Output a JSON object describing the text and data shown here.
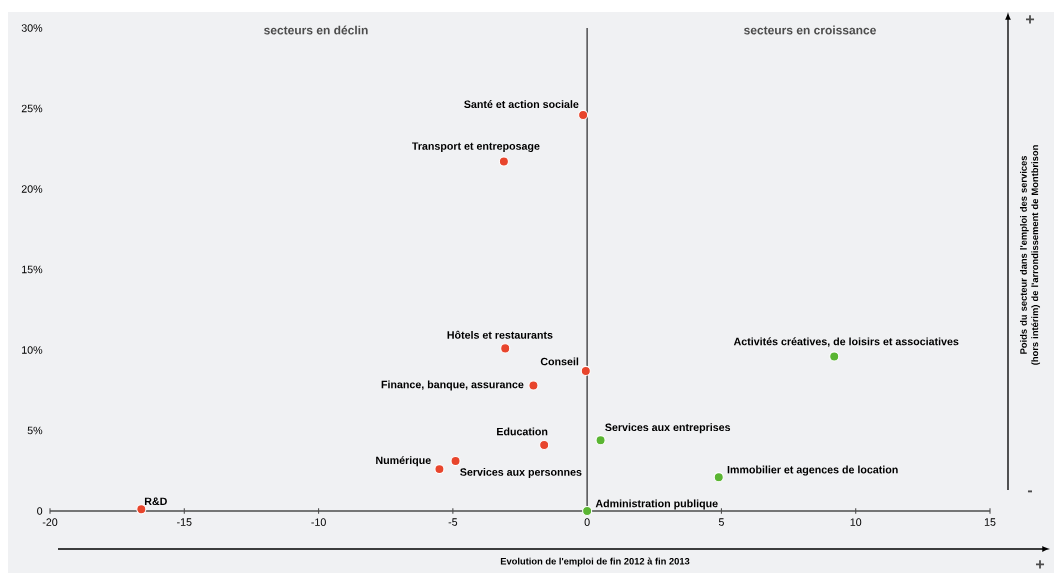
{
  "chart_data": {
    "type": "scatter",
    "xlabel": "Evolution de l'emploi de fin 2012 à fin 2013",
    "ylabel": "Poids du secteur dans l'emploi des services (hors intérim) de l'arrondissement de Montbrison",
    "xlim": [
      -20,
      15
    ],
    "xticks": [
      -20,
      -15,
      -10,
      -5,
      0,
      5,
      10,
      15
    ],
    "ylim": [
      0,
      30
    ],
    "yticks": [
      0,
      {
        "value": 5,
        "label": "5%"
      },
      {
        "value": 10,
        "label": "10%"
      },
      {
        "value": 15,
        "label": "15%"
      },
      {
        "value": 20,
        "label": "20%"
      },
      {
        "value": 25,
        "label": "25%"
      },
      {
        "value": 30,
        "label": "30%"
      }
    ],
    "marker": "circle",
    "grid": false,
    "ref_lines": [
      {
        "axis": "x",
        "value": 0,
        "color": "#58585a"
      }
    ],
    "series": [
      {
        "color": "#e8452c",
        "x": [
          -0.15,
          -3.1,
          -3.05,
          -0.05,
          -2.0,
          -1.6,
          -5.5,
          -4.9,
          -16.6
        ],
        "values": [
          24.6,
          21.7,
          10.1,
          8.7,
          7.8,
          4.1,
          2.6,
          3.1,
          0.1
        ]
      },
      {
        "color": "#5ab532",
        "x": [
          0.0,
          0.5,
          4.9,
          9.2
        ],
        "values": [
          0.0,
          4.4,
          2.1,
          9.6
        ]
      }
    ],
    "annotations": [
      {
        "text": "Santé et action sociale",
        "x": -0.15,
        "y": 24.6
      },
      {
        "text": "Transport et entreposage",
        "x": -3.1,
        "y": 21.7
      },
      {
        "text": "Hôtels et restaurants",
        "x": -3.05,
        "y": 10.1
      },
      {
        "text": "Conseil",
        "x": -0.05,
        "y": 8.7
      },
      {
        "text": "Finance, banque, assurance",
        "x": -2.0,
        "y": 7.8
      },
      {
        "text": "Education",
        "x": -1.6,
        "y": 4.1
      },
      {
        "text": "Numérique",
        "x": -5.5,
        "y": 2.6
      },
      {
        "text": "Services aux personnes",
        "x": -4.9,
        "y": 3.1
      },
      {
        "text": "R&D",
        "x": -16.6,
        "y": 0.1
      },
      {
        "text": "Administration publique",
        "x": 0.0,
        "y": 0.0
      },
      {
        "text": "Services aux entreprises",
        "x": 0.5,
        "y": 4.4
      },
      {
        "text": "Immobilier et agences de location",
        "x": 4.9,
        "y": 2.1
      },
      {
        "text": "Activités créatives, de loisirs et associatives",
        "x": 9.2,
        "y": 9.6
      },
      "secteurs  en déclin",
      "secteurs  en croissance",
      "+",
      "-",
      "+"
    ]
  }
}
